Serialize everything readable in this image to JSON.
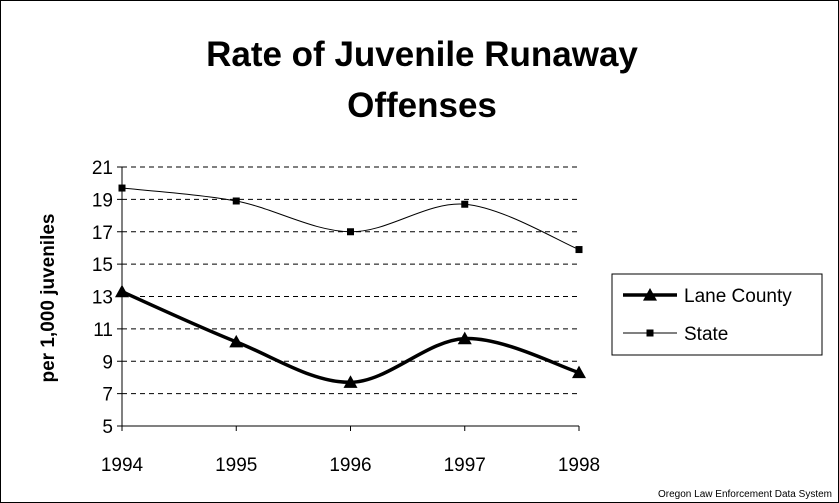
{
  "chart_data": {
    "type": "line",
    "title_lines": [
      "Rate of Juvenile Runaway",
      "Offenses"
    ],
    "ylabel": "per 1,000 juveniles",
    "xlabel": "",
    "categories": [
      "1994",
      "1995",
      "1996",
      "1997",
      "1998"
    ],
    "yticks": [
      "5",
      "7",
      "9",
      "11",
      "13",
      "15",
      "17",
      "19",
      "21"
    ],
    "ylim": [
      5,
      21
    ],
    "grid": true,
    "legend_position": "right",
    "series": [
      {
        "name": "Lane County",
        "values": [
          13.3,
          10.2,
          7.7,
          10.4,
          8.3
        ],
        "color": "#000000",
        "marker": "triangle",
        "line": "thick"
      },
      {
        "name": "State",
        "values": [
          19.7,
          18.9,
          17.0,
          18.7,
          15.9
        ],
        "color": "#000000",
        "marker": "square",
        "line": "thin"
      }
    ]
  },
  "source_note": "Oregon Law Enforcement Data System"
}
